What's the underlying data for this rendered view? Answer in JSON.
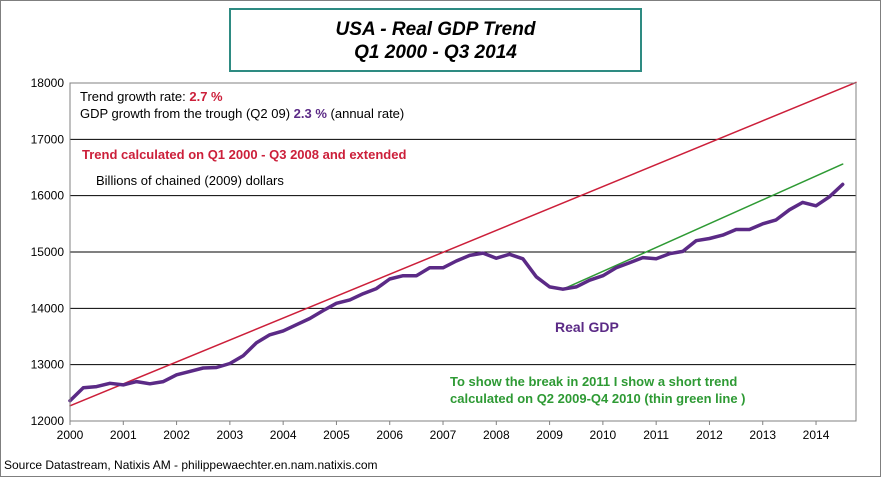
{
  "title": {
    "line1": "USA - Real GDP Trend",
    "line2": "Q1 2000 - Q3 2014"
  },
  "annotations": {
    "trend_rate_label": "Trend growth rate:",
    "trend_rate_value": "2.7 %",
    "gdp_growth_label": "GDP growth from the trough (Q2 09)",
    "gdp_growth_value": "2.3 %",
    "gdp_growth_suffix": "(annual rate)",
    "trend_note": "Trend calculated  on Q1 2000 - Q3 2008 and extended",
    "units": "Billions  of chained  (2009) dollars",
    "real_gdp_label": "Real GDP",
    "break_note_1": "To show the break in 2011 I show a short trend",
    "break_note_2": "calculated  on Q2 2009-Q4 2010 (thin green line  )"
  },
  "source": "Source Datastream, Natixis AM - philippewaechter.en.nam.natixis.com",
  "colors": {
    "gdp": "#5b2a86",
    "trend": "#cc1f3a",
    "short_trend": "#2e9a34",
    "title_border": "#2e8b82"
  },
  "chart_data": {
    "type": "line",
    "xlim": [
      2000,
      2014.75
    ],
    "ylim": [
      12000,
      18000
    ],
    "yticks": [
      12000,
      13000,
      14000,
      15000,
      16000,
      17000,
      18000
    ],
    "xticks": [
      2000,
      2001,
      2002,
      2003,
      2004,
      2005,
      2006,
      2007,
      2008,
      2009,
      2010,
      2011,
      2012,
      2013,
      2014
    ],
    "grid": "horizontal",
    "series": [
      {
        "name": "Real GDP",
        "x": [
          2000.0,
          2000.25,
          2000.5,
          2000.75,
          2001.0,
          2001.25,
          2001.5,
          2001.75,
          2002.0,
          2002.25,
          2002.5,
          2002.75,
          2003.0,
          2003.25,
          2003.5,
          2003.75,
          2004.0,
          2004.25,
          2004.5,
          2004.75,
          2005.0,
          2005.25,
          2005.5,
          2005.75,
          2006.0,
          2006.25,
          2006.5,
          2006.75,
          2007.0,
          2007.25,
          2007.5,
          2007.75,
          2008.0,
          2008.25,
          2008.5,
          2008.75,
          2009.0,
          2009.25,
          2009.5,
          2009.75,
          2010.0,
          2010.25,
          2010.5,
          2010.75,
          2011.0,
          2011.25,
          2011.5,
          2011.75,
          2012.0,
          2012.25,
          2012.5,
          2012.75,
          2013.0,
          2013.25,
          2013.5,
          2013.75,
          2014.0,
          2014.25,
          2014.5
        ],
        "values": [
          12360,
          12590,
          12610,
          12670,
          12640,
          12700,
          12660,
          12700,
          12820,
          12880,
          12940,
          12950,
          13020,
          13160,
          13390,
          13530,
          13600,
          13710,
          13820,
          13960,
          14090,
          14150,
          14260,
          14350,
          14520,
          14580,
          14580,
          14720,
          14720,
          14840,
          14940,
          14980,
          14890,
          14960,
          14880,
          14560,
          14380,
          14340,
          14380,
          14500,
          14580,
          14720,
          14810,
          14900,
          14880,
          14970,
          15010,
          15200,
          15240,
          15300,
          15400,
          15400,
          15500,
          15570,
          15750,
          15880,
          15820,
          15980,
          16200
        ]
      },
      {
        "name": "Trend",
        "x": [
          2000.0,
          2014.75
        ],
        "values": [
          12270,
          18010
        ]
      },
      {
        "name": "Short trend",
        "x": [
          2009.25,
          2014.5
        ],
        "values": [
          14340,
          16560
        ]
      }
    ]
  }
}
